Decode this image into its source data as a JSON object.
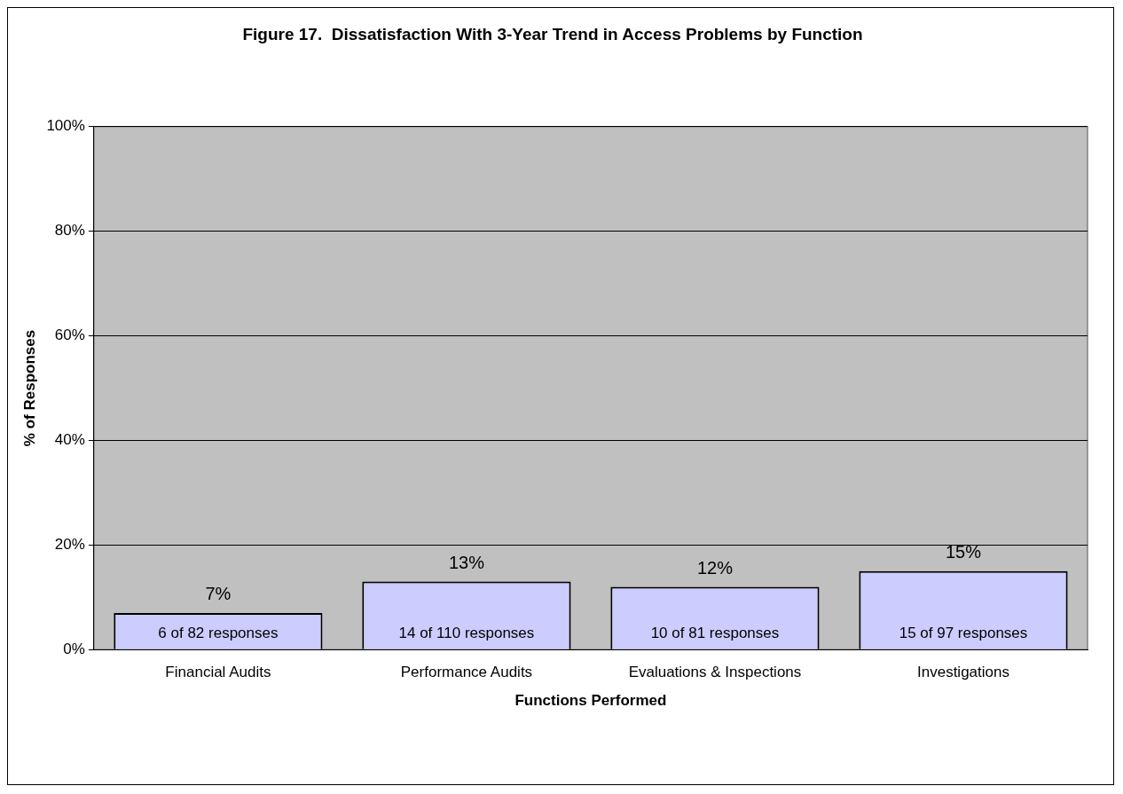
{
  "chart_data": {
    "type": "bar",
    "title": "Figure 17.  Dissatisfaction With 3-Year Trend in Access Problems by Function",
    "xlabel": "Functions Performed",
    "ylabel": "% of Responses",
    "categories": [
      "Financial Audits",
      "Performance Audits",
      "Evaluations & Inspections",
      "Investigations"
    ],
    "values": [
      7,
      13,
      12,
      15
    ],
    "color": "#ccccff",
    "data_labels": true,
    "value_labels": [
      "7%",
      "13%",
      "12%",
      "15%"
    ],
    "ylim": [
      0,
      100
    ],
    "yticks": [
      {
        "value": 0,
        "label": "0%"
      },
      {
        "value": 20,
        "label": "20%"
      },
      {
        "value": 40,
        "label": "40%"
      },
      {
        "value": 60,
        "label": "60%"
      },
      {
        "value": 80,
        "label": "80%"
      },
      {
        "value": 100,
        "label": "100%"
      }
    ],
    "grid": "y",
    "annotations": [
      "6 of 82 responses",
      "14 of 110 responses",
      "10 of 81 responses",
      "15 of 97 responses"
    ]
  }
}
